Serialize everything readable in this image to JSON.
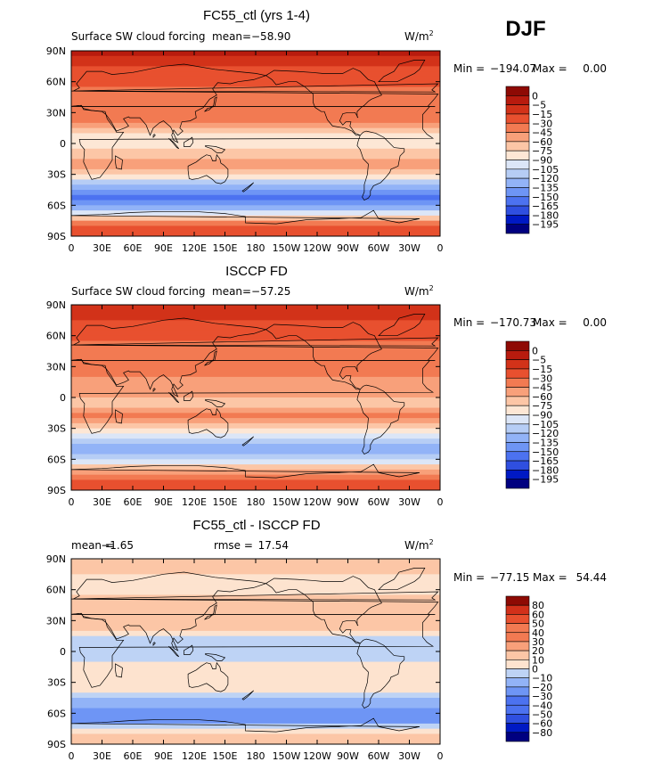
{
  "season": "DJF",
  "units_base": "W/m",
  "units_exp": "2",
  "colors": {
    "cloud_forcing": [
      "#000080",
      "#0019c4",
      "#2f4fe0",
      "#4c72f0",
      "#6e95f5",
      "#92b3f7",
      "#b6cdf5",
      "#dce6f7",
      "#fde7d5",
      "#fcc6a6",
      "#f8a07a",
      "#f27a52",
      "#e8502f",
      "#d23219",
      "#b81b0e",
      "#8e0a04"
    ],
    "difference": [
      "#000080",
      "#0019c4",
      "#2f4fe0",
      "#4c72f0",
      "#6e95f5",
      "#92b3f7",
      "#bed3f5",
      "#fde3cf",
      "#fcc6a6",
      "#f8a07a",
      "#f27a52",
      "#e8502f",
      "#d2301a",
      "#8e0a04"
    ]
  },
  "map": {
    "xticks": [
      "0",
      "30E",
      "60E",
      "90E",
      "120E",
      "150E",
      "180",
      "150W",
      "120W",
      "90W",
      "60W",
      "30W",
      "0"
    ],
    "yticks": [
      "90N",
      "60N",
      "30N",
      "0",
      "30S",
      "60S",
      "90S"
    ]
  },
  "panels": [
    {
      "title": "FC55_ctl (yrs 1-4)",
      "left_label": "Surface SW cloud forcing",
      "mean_label": "mean=",
      "mean_value": "−58.90",
      "rmse_label": "",
      "rmse_value": "",
      "min_label": "Min =",
      "min_value": "−194.07",
      "max_label": "Max =",
      "max_value": "0.00",
      "levels": [
        "0",
        "−5",
        "−15",
        "−30",
        "−45",
        "−60",
        "−75",
        "−90",
        "−105",
        "−120",
        "−135",
        "−150",
        "−165",
        "−180",
        "−195"
      ]
    },
    {
      "title": "ISCCP FD",
      "left_label": "Surface SW cloud forcing",
      "mean_label": "mean=",
      "mean_value": "−57.25",
      "rmse_label": "",
      "rmse_value": "",
      "min_label": "Min =",
      "min_value": "−170.73",
      "max_label": "Max =",
      "max_value": "0.00",
      "levels": [
        "0",
        "−5",
        "−15",
        "−30",
        "−45",
        "−60",
        "−75",
        "−90",
        "−105",
        "−120",
        "−135",
        "−150",
        "−165",
        "−180",
        "−195"
      ]
    },
    {
      "title": "FC55_ctl - ISCCP FD",
      "left_label": "",
      "mean_label": "mean =",
      "mean_value": "−1.65",
      "rmse_label": "rmse =",
      "rmse_value": "17.54",
      "min_label": "Min =",
      "min_value": "−77.15",
      "max_label": "Max =",
      "max_value": "54.44",
      "levels": [
        "80",
        "60",
        "50",
        "40",
        "30",
        "20",
        "10",
        "0",
        "−10",
        "−20",
        "−30",
        "−40",
        "−50",
        "−60",
        "−80"
      ]
    }
  ],
  "chart_data": [
    {
      "type": "heatmap",
      "title": "FC55_ctl (yrs 1-4)",
      "variable": "Surface SW cloud forcing",
      "units": "W/m2",
      "x_range": [
        0,
        360
      ],
      "y_range": [
        -90,
        90
      ],
      "mean": -58.9,
      "min": -194.07,
      "max": 0.0,
      "contour_levels": [
        0,
        -5,
        -15,
        -30,
        -45,
        -60,
        -75,
        -90,
        -105,
        -120,
        -135,
        -150,
        -165,
        -180,
        -195
      ],
      "zonal_profile": {
        "lat": [
          85,
          70,
          55,
          40,
          25,
          10,
          -5,
          -20,
          -35,
          -45,
          -55,
          -65,
          -80
        ],
        "value": [
          -5,
          -20,
          -30,
          -40,
          -30,
          -75,
          -80,
          -45,
          -95,
          -140,
          -155,
          -120,
          -20
        ]
      }
    },
    {
      "type": "heatmap",
      "title": "ISCCP FD",
      "variable": "Surface SW cloud forcing",
      "units": "W/m2",
      "x_range": [
        0,
        360
      ],
      "y_range": [
        -90,
        90
      ],
      "mean": -57.25,
      "min": -170.73,
      "max": 0.0,
      "contour_levels": [
        0,
        -5,
        -15,
        -30,
        -45,
        -60,
        -75,
        -90,
        -105,
        -120,
        -135,
        -150,
        -165,
        -180,
        -195
      ],
      "zonal_profile": {
        "lat": [
          85,
          70,
          55,
          40,
          25,
          10,
          -5,
          -20,
          -35,
          -45,
          -55,
          -65,
          -80
        ],
        "value": [
          -10,
          -20,
          -30,
          -40,
          -40,
          -55,
          -65,
          -40,
          -90,
          -120,
          -125,
          -80,
          -25
        ]
      }
    },
    {
      "type": "heatmap",
      "title": "FC55_ctl - ISCCP FD",
      "units": "W/m2",
      "x_range": [
        0,
        360
      ],
      "y_range": [
        -90,
        90
      ],
      "mean": -1.65,
      "rmse": 17.54,
      "min": -77.15,
      "max": 54.44,
      "contour_levels": [
        80,
        60,
        50,
        40,
        30,
        20,
        10,
        0,
        -10,
        -20,
        -30,
        -40,
        -50,
        -60,
        -80
      ],
      "zonal_profile": {
        "lat": [
          85,
          70,
          55,
          40,
          25,
          10,
          -5,
          -20,
          -35,
          -45,
          -55,
          -65,
          -80
        ],
        "value": [
          5,
          -2,
          0,
          0,
          10,
          -20,
          -15,
          -5,
          -5,
          -20,
          -30,
          -40,
          5
        ]
      }
    }
  ]
}
